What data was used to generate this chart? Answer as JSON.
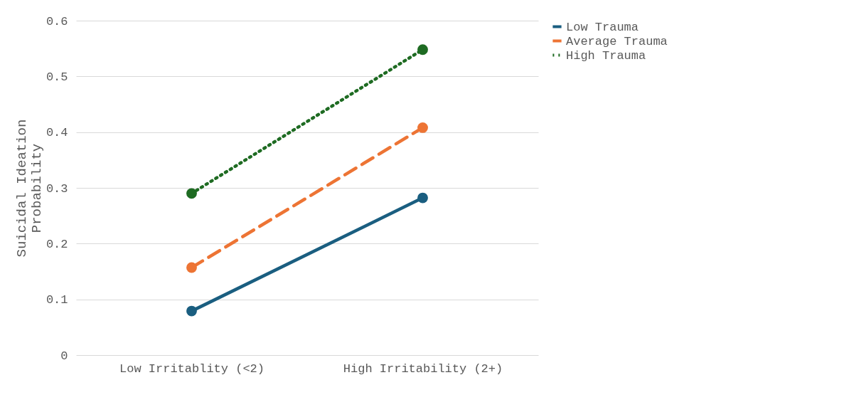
{
  "chart_data": {
    "type": "line",
    "ylabel": "Suicidal Ideation\nProbability",
    "categories": [
      "Low Irritablity (<2)",
      "High Irritability (2+)"
    ],
    "series": [
      {
        "name": "Low Trauma",
        "color": "#1a5e80",
        "values": [
          0.079,
          0.282
        ],
        "line_style": "solid"
      },
      {
        "name": "Average Trauma",
        "color": "#ed7434",
        "values": [
          0.157,
          0.408
        ],
        "line_style": "dashed"
      },
      {
        "name": "High Trauma",
        "color": "#1e6b22",
        "values": [
          0.29,
          0.548
        ],
        "line_style": "dotted"
      }
    ],
    "ylim": [
      0,
      0.6
    ],
    "yticks": [
      0,
      0.1,
      0.2,
      0.3,
      0.4,
      0.5,
      0.6
    ],
    "grid": "y",
    "legend": "right",
    "marker": "circle"
  }
}
